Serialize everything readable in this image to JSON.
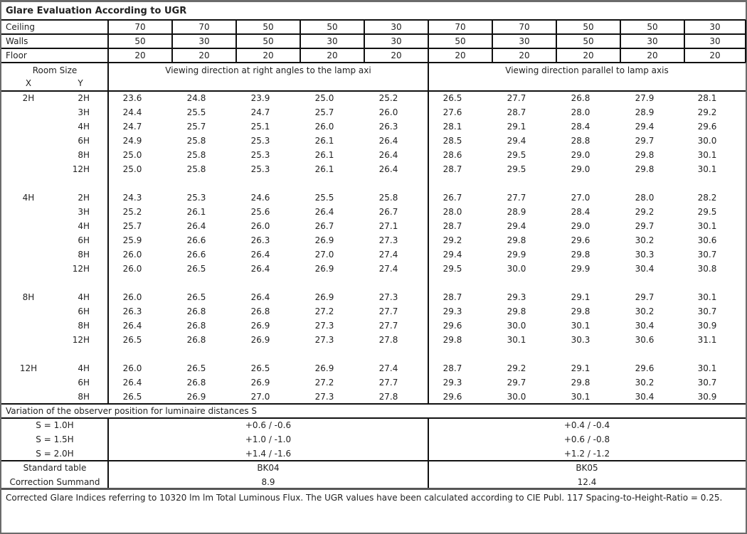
{
  "title": "Glare Evaluation According to UGR",
  "reflectances": [
    {
      "label": "Ceiling",
      "values": [
        "70",
        "70",
        "50",
        "50",
        "30",
        "70",
        "70",
        "50",
        "50",
        "30"
      ]
    },
    {
      "label": "Walls",
      "values": [
        "50",
        "30",
        "50",
        "30",
        "30",
        "50",
        "30",
        "50",
        "30",
        "30"
      ]
    },
    {
      "label": "Floor",
      "values": [
        "20",
        "20",
        "20",
        "20",
        "20",
        "20",
        "20",
        "20",
        "20",
        "20"
      ]
    }
  ],
  "header": {
    "room_size": "Room Size",
    "x": "X",
    "y": "Y",
    "perpendicular": "Viewing direction at right angles to the lamp axi",
    "parallel": "Viewing direction parallel to lamp axis"
  },
  "groups": [
    {
      "x": "2H",
      "rows": [
        {
          "y": "2H",
          "values": [
            "23.6",
            "24.8",
            "23.9",
            "25.0",
            "25.2",
            "26.5",
            "27.7",
            "26.8",
            "27.9",
            "28.1"
          ]
        },
        {
          "y": "3H",
          "values": [
            "24.4",
            "25.5",
            "24.7",
            "25.7",
            "26.0",
            "27.6",
            "28.7",
            "28.0",
            "28.9",
            "29.2"
          ]
        },
        {
          "y": "4H",
          "values": [
            "24.7",
            "25.7",
            "25.1",
            "26.0",
            "26.3",
            "28.1",
            "29.1",
            "28.4",
            "29.4",
            "29.6"
          ]
        },
        {
          "y": "6H",
          "values": [
            "24.9",
            "25.8",
            "25.3",
            "26.1",
            "26.4",
            "28.5",
            "29.4",
            "28.8",
            "29.7",
            "30.0"
          ]
        },
        {
          "y": "8H",
          "values": [
            "25.0",
            "25.8",
            "25.3",
            "26.1",
            "26.4",
            "28.6",
            "29.5",
            "29.0",
            "29.8",
            "30.1"
          ]
        },
        {
          "y": "12H",
          "values": [
            "25.0",
            "25.8",
            "25.3",
            "26.1",
            "26.4",
            "28.7",
            "29.5",
            "29.0",
            "29.8",
            "30.1"
          ]
        }
      ]
    },
    {
      "x": "4H",
      "rows": [
        {
          "y": "2H",
          "values": [
            "24.3",
            "25.3",
            "24.6",
            "25.5",
            "25.8",
            "26.7",
            "27.7",
            "27.0",
            "28.0",
            "28.2"
          ]
        },
        {
          "y": "3H",
          "values": [
            "25.2",
            "26.1",
            "25.6",
            "26.4",
            "26.7",
            "28.0",
            "28.9",
            "28.4",
            "29.2",
            "29.5"
          ]
        },
        {
          "y": "4H",
          "values": [
            "25.7",
            "26.4",
            "26.0",
            "26.7",
            "27.1",
            "28.7",
            "29.4",
            "29.0",
            "29.7",
            "30.1"
          ]
        },
        {
          "y": "6H",
          "values": [
            "25.9",
            "26.6",
            "26.3",
            "26.9",
            "27.3",
            "29.2",
            "29.8",
            "29.6",
            "30.2",
            "30.6"
          ]
        },
        {
          "y": "8H",
          "values": [
            "26.0",
            "26.6",
            "26.4",
            "27.0",
            "27.4",
            "29.4",
            "29.9",
            "29.8",
            "30.3",
            "30.7"
          ]
        },
        {
          "y": "12H",
          "values": [
            "26.0",
            "26.5",
            "26.4",
            "26.9",
            "27.4",
            "29.5",
            "30.0",
            "29.9",
            "30.4",
            "30.8"
          ]
        }
      ]
    },
    {
      "x": "8H",
      "rows": [
        {
          "y": "4H",
          "values": [
            "26.0",
            "26.5",
            "26.4",
            "26.9",
            "27.3",
            "28.7",
            "29.3",
            "29.1",
            "29.7",
            "30.1"
          ]
        },
        {
          "y": "6H",
          "values": [
            "26.3",
            "26.8",
            "26.8",
            "27.2",
            "27.7",
            "29.3",
            "29.8",
            "29.8",
            "30.2",
            "30.7"
          ]
        },
        {
          "y": "8H",
          "values": [
            "26.4",
            "26.8",
            "26.9",
            "27.3",
            "27.7",
            "29.6",
            "30.0",
            "30.1",
            "30.4",
            "30.9"
          ]
        },
        {
          "y": "12H",
          "values": [
            "26.5",
            "26.8",
            "26.9",
            "27.3",
            "27.8",
            "29.8",
            "30.1",
            "30.3",
            "30.6",
            "31.1"
          ]
        }
      ]
    },
    {
      "x": "12H",
      "rows": [
        {
          "y": "4H",
          "values": [
            "26.0",
            "26.5",
            "26.5",
            "26.9",
            "27.4",
            "28.7",
            "29.2",
            "29.1",
            "29.6",
            "30.1"
          ]
        },
        {
          "y": "6H",
          "values": [
            "26.4",
            "26.8",
            "26.9",
            "27.2",
            "27.7",
            "29.3",
            "29.7",
            "29.8",
            "30.2",
            "30.7"
          ]
        },
        {
          "y": "8H",
          "values": [
            "26.5",
            "26.9",
            "27.0",
            "27.3",
            "27.8",
            "29.6",
            "30.0",
            "30.1",
            "30.4",
            "30.9"
          ]
        }
      ]
    }
  ],
  "variation": {
    "title": "Variation of the observer position for luminaire distances S",
    "rows": [
      {
        "s": "S = 1.0H",
        "perpendicular": "+0.6 / -0.6",
        "parallel": "+0.4 / -0.4"
      },
      {
        "s": "S = 1.5H",
        "perpendicular": "+1.0 / -1.0",
        "parallel": "+0.6 / -0.8"
      },
      {
        "s": "S = 2.0H",
        "perpendicular": "+1.4 / -1.6",
        "parallel": "+1.2 / -1.2"
      }
    ]
  },
  "standard_table": {
    "label": "Standard table",
    "perpendicular": "BK04",
    "parallel": "BK05"
  },
  "correction": {
    "label": "Correction Summand",
    "perpendicular": "8.9",
    "parallel": "12.4"
  },
  "footer": "Corrected Glare Indices referring to 10320 lm lm Total Luminous Flux. The UGR values have been calculated according to CIE Publ. 117    Spacing-to-Height-Ratio = 0.25."
}
